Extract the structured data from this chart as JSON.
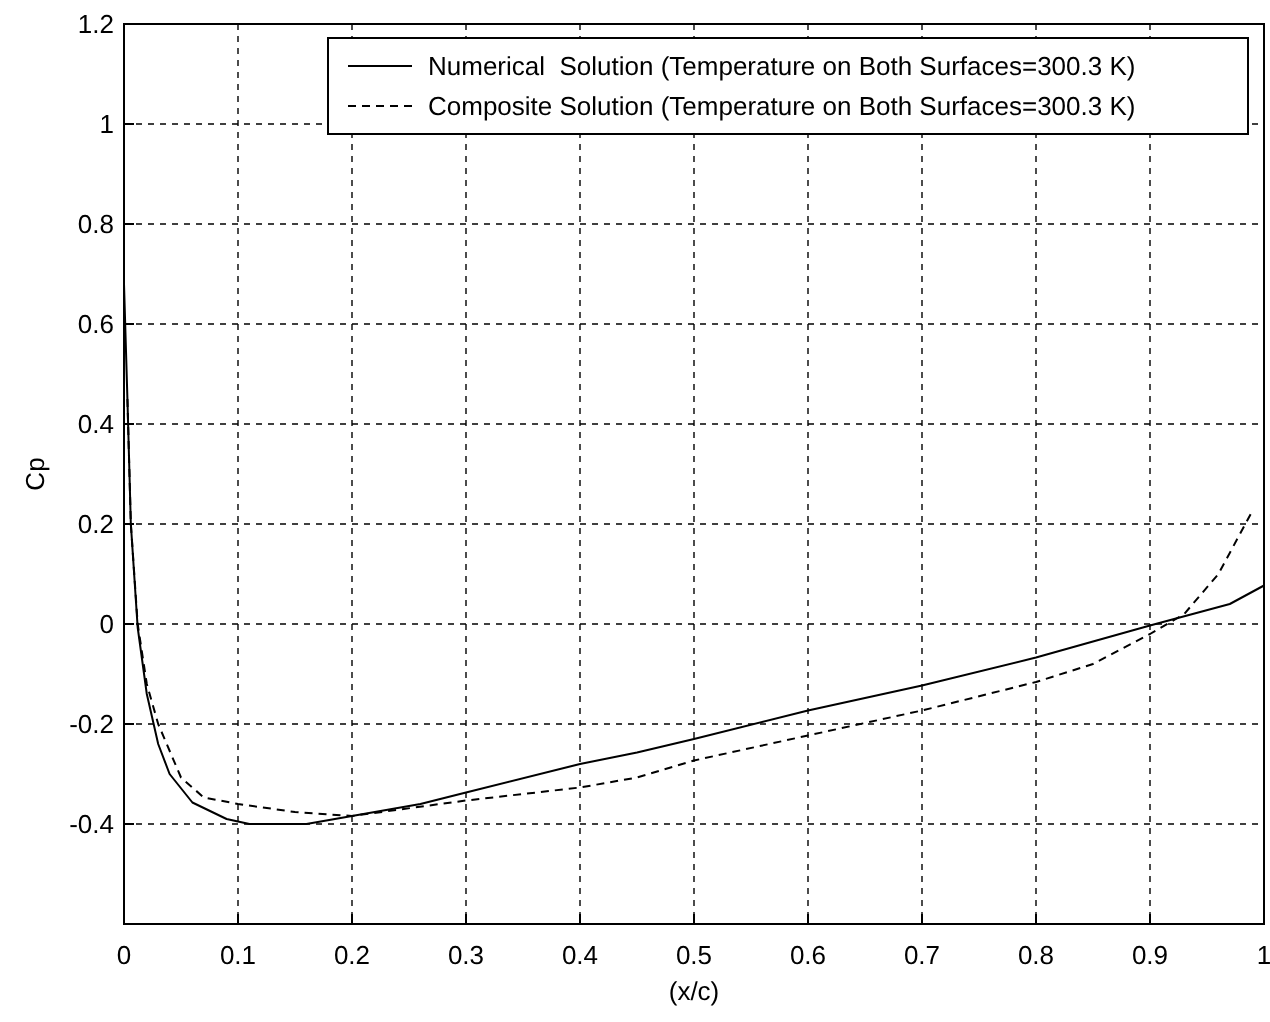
{
  "chart_data": {
    "type": "line",
    "xlabel": "(x/c)",
    "ylabel": "Cp",
    "xlim": [
      0,
      1
    ],
    "xticks": [
      0,
      0.1,
      0.2,
      0.3,
      0.4,
      0.5,
      0.6,
      0.7,
      0.8,
      0.9,
      1
    ],
    "ylim": [
      -0.6,
      1.2
    ],
    "yticks": [
      -0.4,
      -0.2,
      0,
      0.2,
      0.4,
      0.6,
      0.8,
      1,
      1.2
    ],
    "grid": true,
    "legend": "top right",
    "series": [
      {
        "name": "Numerical  Solution (Temperature on Both Surfaces=300.3 K)",
        "color": "#000000",
        "line_style": "solid",
        "x": [
          0,
          0.003,
          0.006,
          0.012,
          0.02,
          0.03,
          0.04,
          0.06,
          0.09,
          0.11,
          0.16,
          0.2,
          0.26,
          0.3,
          0.4,
          0.45,
          0.5,
          0.6,
          0.7,
          0.8,
          0.9,
          0.97,
          1
        ],
        "values": [
          0.68,
          0.45,
          0.2,
          -0.007,
          -0.14,
          -0.24,
          -0.3,
          -0.357,
          -0.39,
          -0.4,
          -0.4,
          -0.384,
          -0.36,
          -0.337,
          -0.28,
          -0.257,
          -0.23,
          -0.173,
          -0.123,
          -0.067,
          -0.003,
          0.04,
          0.077
        ]
      },
      {
        "name": "Composite Solution (Temperature on Both Surfaces=300.3 K)",
        "color": "#000000",
        "line_style": "dashed",
        "x": [
          0.003,
          0.006,
          0.012,
          0.02,
          0.03,
          0.05,
          0.07,
          0.1,
          0.15,
          0.2,
          0.3,
          0.4,
          0.45,
          0.5,
          0.6,
          0.7,
          0.8,
          0.85,
          0.9,
          0.93,
          0.96,
          0.99
        ],
        "values": [
          0.45,
          0.2,
          0,
          -0.12,
          -0.2,
          -0.307,
          -0.347,
          -0.36,
          -0.376,
          -0.384,
          -0.353,
          -0.327,
          -0.307,
          -0.273,
          -0.223,
          -0.173,
          -0.116,
          -0.08,
          -0.02,
          0.02,
          0.1,
          0.227
        ]
      }
    ]
  }
}
